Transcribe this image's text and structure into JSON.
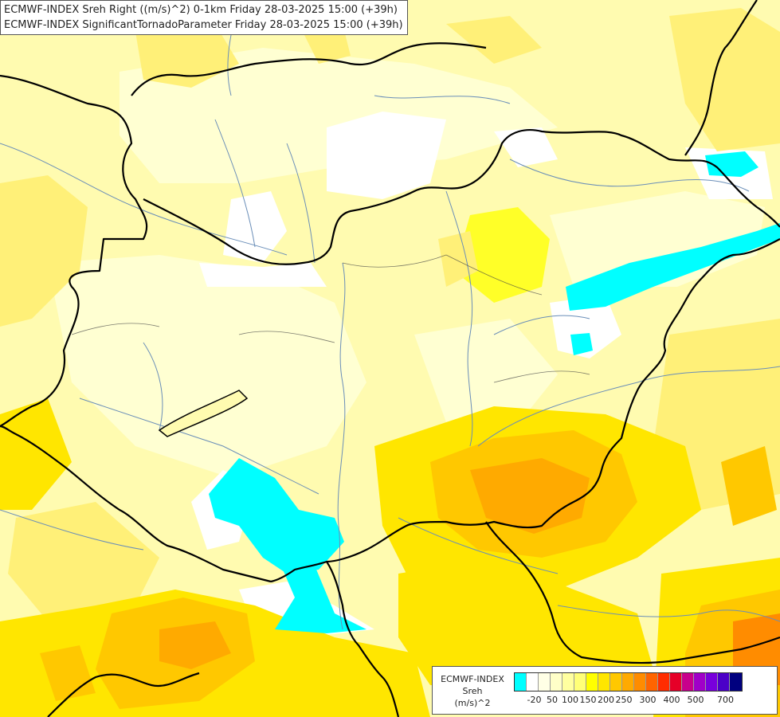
{
  "header": {
    "line1": "ECMWF-INDEX Sreh Right ((m/s)^2) 0-1km Friday 28-03-2025 15:00 (+39h)",
    "line2": "ECMWF-INDEX SignificantTornadoParameter Friday 28-03-2025 15:00 (+39h)"
  },
  "legend": {
    "line1": "ECMWF-INDEX",
    "line2": "Sreh",
    "line3": "(m/s)^2",
    "colors": [
      "#00ffff",
      "#ffffff",
      "#ffffe6",
      "#ffffc8",
      "#ffffa0",
      "#ffff78",
      "#ffff00",
      "#ffe600",
      "#ffc800",
      "#ffaa00",
      "#ff8c00",
      "#ff6400",
      "#ff2d00",
      "#e60028",
      "#c8008c",
      "#a000c8",
      "#7800dc",
      "#4b00c8",
      "#00007f"
    ],
    "ticks": [
      "-20",
      "50",
      "100",
      "150",
      "200",
      "250",
      "300",
      "400",
      "500",
      "700"
    ]
  }
}
